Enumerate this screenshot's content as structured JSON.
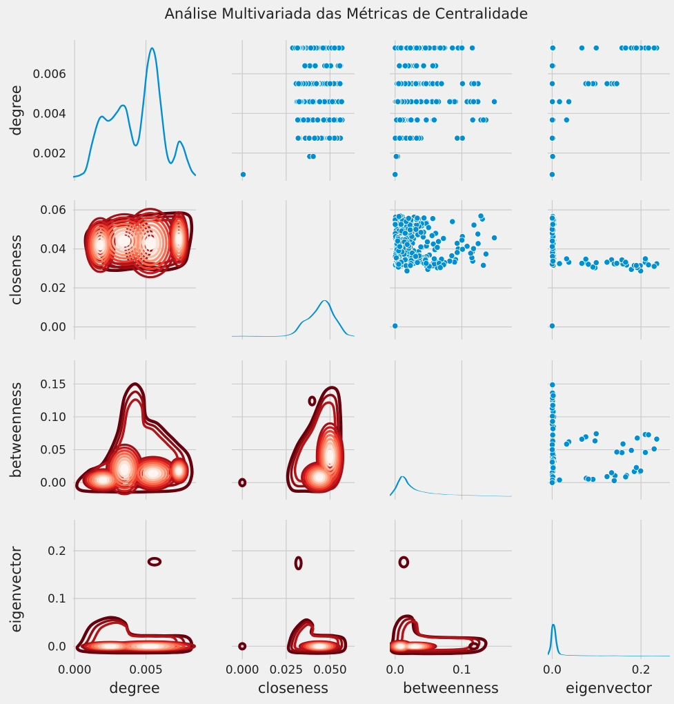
{
  "chart_data": {
    "type": "scatter",
    "title": "Análise Multivariada das Métricas de Centralidade",
    "variables": [
      "degree",
      "closeness",
      "betweenness",
      "eigenvector"
    ],
    "axes": {
      "degree": {
        "lim": [
          -0.0001,
          0.0085
        ],
        "ticks": [
          0.0,
          0.005
        ],
        "tick_labels": [
          "0.000",
          "0.005"
        ],
        "label": "degree"
      },
      "closeness": {
        "lim": [
          -0.006,
          0.064
        ],
        "ticks": [
          0.0,
          0.025,
          0.05
        ],
        "tick_labels": [
          "0.000",
          "0.025",
          "0.050"
        ],
        "label": "closeness"
      },
      "betweenness": {
        "lim": [
          -0.008,
          0.175
        ],
        "ticks": [
          0.0,
          0.1
        ],
        "tick_labels": [
          "0.0",
          "0.1"
        ],
        "label": "betweenness"
      },
      "eigenvector": {
        "lim": [
          -0.01,
          0.265
        ],
        "ticks": [
          0.0,
          0.2
        ],
        "tick_labels": [
          "0.0",
          "0.2"
        ],
        "label": "eigenvector"
      }
    },
    "row_axes": {
      "degree": {
        "lim": [
          0.0006,
          0.0077
        ],
        "ticks": [
          0.002,
          0.004,
          0.006
        ],
        "tick_labels": [
          "0.002",
          "0.004",
          "0.006"
        ],
        "label": "degree"
      },
      "closeness": {
        "lim": [
          -0.0065,
          0.065
        ],
        "ticks": [
          0.0,
          0.02,
          0.04,
          0.06
        ],
        "tick_labels": [
          "0.00",
          "0.02",
          "0.04",
          "0.06"
        ],
        "label": "closeness"
      },
      "betweenness": {
        "lim": [
          -0.026,
          0.186
        ],
        "ticks": [
          0.0,
          0.05,
          0.1,
          0.15
        ],
        "tick_labels": [
          "0.00",
          "0.05",
          "0.10",
          "0.15"
        ],
        "label": "betweenness"
      },
      "eigenvector": {
        "lim": [
          -0.027,
          0.265
        ],
        "ticks": [
          0.0,
          0.1,
          0.2
        ],
        "tick_labels": [
          "0.0",
          "0.1",
          "0.2"
        ],
        "label": "eigenvector"
      }
    },
    "degree_levels": [
      0.00092,
      0.00183,
      0.00275,
      0.00367,
      0.00459,
      0.0055,
      0.0064,
      0.0073
    ],
    "diagonal_kde": {
      "degree": [
        [
          -0.0001,
          0.02
        ],
        [
          0.0004,
          0.05
        ],
        [
          0.0008,
          0.15
        ],
        [
          0.0012,
          0.55
        ],
        [
          0.0016,
          0.9
        ],
        [
          0.0019,
          1.02
        ],
        [
          0.0023,
          0.95
        ],
        [
          0.0026,
          0.98
        ],
        [
          0.003,
          1.1
        ],
        [
          0.0033,
          1.2
        ],
        [
          0.0036,
          1.15
        ],
        [
          0.0039,
          0.82
        ],
        [
          0.0042,
          0.55
        ],
        [
          0.0045,
          0.65
        ],
        [
          0.0048,
          1.2
        ],
        [
          0.0051,
          1.85
        ],
        [
          0.0054,
          2.15
        ],
        [
          0.0057,
          1.95
        ],
        [
          0.006,
          1.3
        ],
        [
          0.0064,
          0.5
        ],
        [
          0.0067,
          0.25
        ],
        [
          0.007,
          0.35
        ],
        [
          0.0073,
          0.6
        ],
        [
          0.0076,
          0.52
        ],
        [
          0.0079,
          0.3
        ],
        [
          0.0082,
          0.12
        ],
        [
          0.0085,
          0.04
        ]
      ],
      "closeness": [
        [
          -0.006,
          0.01
        ],
        [
          0.0,
          0.012
        ],
        [
          0.005,
          0.01
        ],
        [
          0.02,
          0.01
        ],
        [
          0.026,
          0.03
        ],
        [
          0.03,
          0.09
        ],
        [
          0.034,
          0.25
        ],
        [
          0.038,
          0.32
        ],
        [
          0.042,
          0.45
        ],
        [
          0.046,
          0.62
        ],
        [
          0.049,
          0.58
        ],
        [
          0.052,
          0.38
        ],
        [
          0.055,
          0.24
        ],
        [
          0.058,
          0.1
        ],
        [
          0.06,
          0.04
        ],
        [
          0.064,
          0.01
        ]
      ],
      "betweenness": [
        [
          -0.008,
          0.05
        ],
        [
          0.0,
          0.35
        ],
        [
          0.005,
          0.65
        ],
        [
          0.01,
          0.88
        ],
        [
          0.015,
          0.8
        ],
        [
          0.02,
          0.55
        ],
        [
          0.03,
          0.32
        ],
        [
          0.045,
          0.2
        ],
        [
          0.06,
          0.14
        ],
        [
          0.08,
          0.1
        ],
        [
          0.1,
          0.08
        ],
        [
          0.12,
          0.06
        ],
        [
          0.14,
          0.05
        ],
        [
          0.16,
          0.03
        ],
        [
          0.175,
          0.03
        ]
      ],
      "eigenvector": [
        [
          -0.01,
          0.05
        ],
        [
          -0.004,
          0.3
        ],
        [
          0.0,
          0.9
        ],
        [
          0.003,
          1.0
        ],
        [
          0.006,
          0.85
        ],
        [
          0.01,
          0.4
        ],
        [
          0.015,
          0.12
        ],
        [
          0.025,
          0.05
        ],
        [
          0.05,
          0.03
        ],
        [
          0.1,
          0.02
        ],
        [
          0.15,
          0.02
        ],
        [
          0.2,
          0.01
        ],
        [
          0.265,
          0.01
        ]
      ]
    },
    "grid": true,
    "colors": {
      "scatter": "#008fd5",
      "kde_line": "#008fd5",
      "kde_dark": "#67000d",
      "kde_light": "#fff5f0",
      "background": "#f0f0f0",
      "gridline": "#cbcbcb"
    }
  }
}
